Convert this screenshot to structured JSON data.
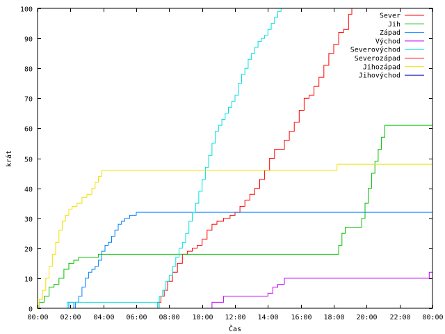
{
  "chart_data": {
    "type": "line",
    "xlabel": "Čas",
    "ylabel": "krát",
    "xlim": [
      0,
      24
    ],
    "ylim": [
      0,
      100
    ],
    "x_ticks": [
      "00:00",
      "02:00",
      "04:00",
      "06:00",
      "08:00",
      "10:00",
      "12:00",
      "14:00",
      "16:00",
      "18:00",
      "20:00",
      "22:00",
      "00:00"
    ],
    "y_ticks": [
      "0",
      "10",
      "20",
      "30",
      "40",
      "50",
      "60",
      "70",
      "80",
      "90",
      "100"
    ],
    "grid": false,
    "legend_position": "top-right",
    "x_unit": "hours since 00:00",
    "series": [
      {
        "name": "Sever",
        "color": "#ff0000",
        "points": [
          [
            7.1,
            0
          ],
          [
            7.3,
            2
          ],
          [
            7.5,
            4
          ],
          [
            7.7,
            6
          ],
          [
            7.9,
            9
          ],
          [
            8.2,
            12
          ],
          [
            8.5,
            15
          ],
          [
            8.8,
            18
          ],
          [
            9.1,
            19
          ],
          [
            9.4,
            20
          ],
          [
            9.7,
            21
          ],
          [
            10.0,
            23
          ],
          [
            10.3,
            26
          ],
          [
            10.6,
            28
          ],
          [
            10.9,
            29
          ],
          [
            11.3,
            30
          ],
          [
            11.7,
            31
          ],
          [
            12.0,
            32
          ],
          [
            12.3,
            34
          ],
          [
            12.6,
            36
          ],
          [
            12.9,
            38
          ],
          [
            13.2,
            40
          ],
          [
            13.5,
            43
          ],
          [
            13.8,
            46
          ],
          [
            14.1,
            50
          ],
          [
            14.4,
            53
          ],
          [
            14.7,
            53
          ],
          [
            15.0,
            56
          ],
          [
            15.3,
            59
          ],
          [
            15.6,
            62
          ],
          [
            15.9,
            66
          ],
          [
            16.2,
            70
          ],
          [
            16.5,
            71
          ],
          [
            16.8,
            74
          ],
          [
            17.1,
            77
          ],
          [
            17.4,
            81
          ],
          [
            17.7,
            85
          ],
          [
            18.0,
            88
          ],
          [
            18.3,
            92
          ],
          [
            18.6,
            93
          ],
          [
            18.9,
            98
          ],
          [
            19.1,
            100
          ]
        ]
      },
      {
        "name": "Jih",
        "color": "#00c000",
        "points": [
          [
            0.0,
            0
          ],
          [
            0.1,
            2
          ],
          [
            0.4,
            4
          ],
          [
            0.7,
            7
          ],
          [
            1.0,
            8
          ],
          [
            1.3,
            10
          ],
          [
            1.6,
            13
          ],
          [
            1.9,
            15
          ],
          [
            2.2,
            16
          ],
          [
            2.5,
            17
          ],
          [
            3.0,
            17
          ],
          [
            3.7,
            18
          ],
          [
            8.0,
            18
          ],
          [
            14.0,
            18
          ],
          [
            18.1,
            18
          ],
          [
            18.3,
            21
          ],
          [
            18.5,
            25
          ],
          [
            18.7,
            27
          ],
          [
            19.0,
            27
          ],
          [
            19.5,
            27
          ],
          [
            19.7,
            30
          ],
          [
            19.9,
            35
          ],
          [
            20.1,
            40
          ],
          [
            20.3,
            45
          ],
          [
            20.5,
            49
          ],
          [
            20.7,
            53
          ],
          [
            20.9,
            57
          ],
          [
            21.1,
            61
          ],
          [
            22.0,
            61
          ],
          [
            24.0,
            61
          ]
        ]
      },
      {
        "name": "Západ",
        "color": "#0080ff",
        "points": [
          [
            1.8,
            0
          ],
          [
            1.9,
            2
          ],
          [
            2.2,
            0
          ],
          [
            2.3,
            2
          ],
          [
            2.5,
            4
          ],
          [
            2.7,
            7
          ],
          [
            2.9,
            10
          ],
          [
            3.1,
            12
          ],
          [
            3.3,
            13
          ],
          [
            3.5,
            14
          ],
          [
            3.7,
            16
          ],
          [
            3.9,
            19
          ],
          [
            4.1,
            21
          ],
          [
            4.3,
            22
          ],
          [
            4.5,
            24
          ],
          [
            4.7,
            26
          ],
          [
            4.9,
            28
          ],
          [
            5.1,
            29
          ],
          [
            5.3,
            30
          ],
          [
            5.6,
            31
          ],
          [
            6.0,
            32
          ],
          [
            8.0,
            32
          ],
          [
            16.0,
            32
          ],
          [
            24.0,
            32
          ]
        ]
      },
      {
        "name": "Východ",
        "color": "#c000ff",
        "points": [
          [
            10.4,
            0
          ],
          [
            10.6,
            2
          ],
          [
            11.0,
            2
          ],
          [
            11.3,
            4
          ],
          [
            12.0,
            4
          ],
          [
            13.5,
            4
          ],
          [
            14.0,
            5
          ],
          [
            14.3,
            7
          ],
          [
            14.6,
            8
          ],
          [
            15.0,
            10
          ],
          [
            16.0,
            10
          ],
          [
            18.0,
            10
          ],
          [
            20.0,
            10
          ],
          [
            22.0,
            10
          ],
          [
            23.6,
            10
          ],
          [
            23.8,
            12
          ],
          [
            24.0,
            12
          ]
        ]
      },
      {
        "name": "Severovýchod",
        "color": "#00e0e0",
        "points": [
          [
            1.8,
            0
          ],
          [
            1.8,
            2
          ],
          [
            4.0,
            2
          ],
          [
            6.0,
            2
          ],
          [
            7.2,
            2
          ],
          [
            7.3,
            0
          ],
          [
            7.4,
            4
          ],
          [
            7.6,
            6
          ],
          [
            7.8,
            9
          ],
          [
            8.0,
            11
          ],
          [
            8.2,
            14
          ],
          [
            8.4,
            17
          ],
          [
            8.6,
            20
          ],
          [
            8.8,
            22
          ],
          [
            9.0,
            25
          ],
          [
            9.2,
            29
          ],
          [
            9.4,
            32
          ],
          [
            9.6,
            35
          ],
          [
            9.8,
            39
          ],
          [
            10.0,
            43
          ],
          [
            10.2,
            47
          ],
          [
            10.4,
            51
          ],
          [
            10.6,
            55
          ],
          [
            10.8,
            59
          ],
          [
            11.0,
            61
          ],
          [
            11.2,
            63
          ],
          [
            11.4,
            65
          ],
          [
            11.6,
            67
          ],
          [
            11.8,
            69
          ],
          [
            12.0,
            71
          ],
          [
            12.2,
            75
          ],
          [
            12.4,
            78
          ],
          [
            12.6,
            80
          ],
          [
            12.8,
            83
          ],
          [
            13.0,
            85
          ],
          [
            13.2,
            87
          ],
          [
            13.4,
            89
          ],
          [
            13.6,
            90
          ],
          [
            13.8,
            91
          ],
          [
            14.0,
            93
          ],
          [
            14.2,
            95
          ],
          [
            14.4,
            97
          ],
          [
            14.6,
            99
          ],
          [
            14.8,
            100
          ]
        ]
      },
      {
        "name": "Severozápad",
        "color": "#ff0000",
        "points": []
      },
      {
        "name": "Jihozápad",
        "color": "#f0e000",
        "points": [
          [
            0.0,
            0
          ],
          [
            0.1,
            3
          ],
          [
            0.3,
            6
          ],
          [
            0.5,
            10
          ],
          [
            0.7,
            14
          ],
          [
            0.9,
            18
          ],
          [
            1.1,
            22
          ],
          [
            1.3,
            26
          ],
          [
            1.5,
            29
          ],
          [
            1.7,
            31
          ],
          [
            1.9,
            33
          ],
          [
            2.1,
            34
          ],
          [
            2.4,
            35
          ],
          [
            2.7,
            37
          ],
          [
            3.0,
            38
          ],
          [
            3.3,
            40
          ],
          [
            3.5,
            42
          ],
          [
            3.7,
            44
          ],
          [
            3.9,
            46
          ],
          [
            5.0,
            46
          ],
          [
            8.0,
            46
          ],
          [
            12.0,
            46
          ],
          [
            16.0,
            46
          ],
          [
            18.1,
            46
          ],
          [
            18.2,
            48
          ],
          [
            20.0,
            48
          ],
          [
            24.0,
            48
          ]
        ]
      },
      {
        "name": "Jihovýchod",
        "color": "#0000b0",
        "points": []
      }
    ]
  }
}
